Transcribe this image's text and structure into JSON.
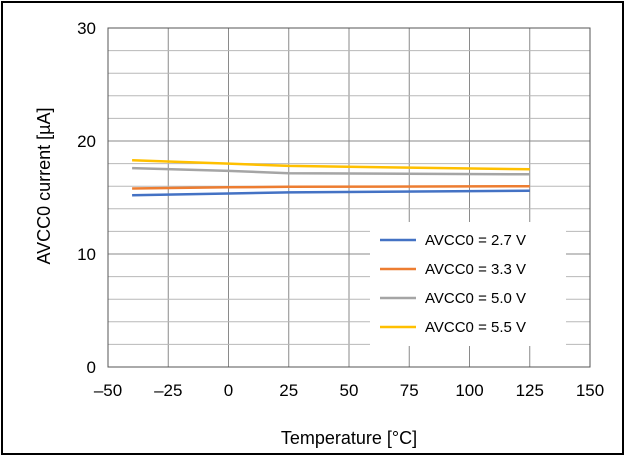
{
  "chart_data": {
    "type": "line",
    "title": "",
    "xlabel": "Temperature [°C]",
    "ylabel": "AVCC0 current [µA]",
    "xlim": [
      -50,
      150
    ],
    "ylim": [
      0,
      30
    ],
    "xticks": [
      -50,
      -25,
      0,
      25,
      50,
      75,
      100,
      125,
      150
    ],
    "yticks": [
      0,
      10,
      20,
      30
    ],
    "x_tick_labels": [
      "–50",
      "–25",
      "0",
      "25",
      "50",
      "75",
      "100",
      "125",
      "150"
    ],
    "y_tick_labels": [
      "0",
      "10",
      "20",
      "30"
    ],
    "grid": true,
    "legend_position": "bottom-right",
    "series": [
      {
        "name": "AVCC0 = 2.7 V",
        "color": "#4472C4",
        "x": [
          -40,
          0,
          25,
          125
        ],
        "y": [
          15.2,
          15.35,
          15.45,
          15.6
        ]
      },
      {
        "name": "AVCC0 = 3.3 V",
        "color": "#ED7D31",
        "x": [
          -40,
          0,
          25,
          125
        ],
        "y": [
          15.8,
          15.9,
          15.95,
          16.0
        ]
      },
      {
        "name": "AVCC0 = 5.0 V",
        "color": "#A5A5A5",
        "x": [
          -40,
          0,
          25,
          125
        ],
        "y": [
          17.6,
          17.35,
          17.15,
          17.05
        ]
      },
      {
        "name": "AVCC0 = 5.5 V",
        "color": "#FFC000",
        "x": [
          -40,
          0,
          25,
          125
        ],
        "y": [
          18.3,
          18.0,
          17.8,
          17.5
        ]
      }
    ]
  }
}
